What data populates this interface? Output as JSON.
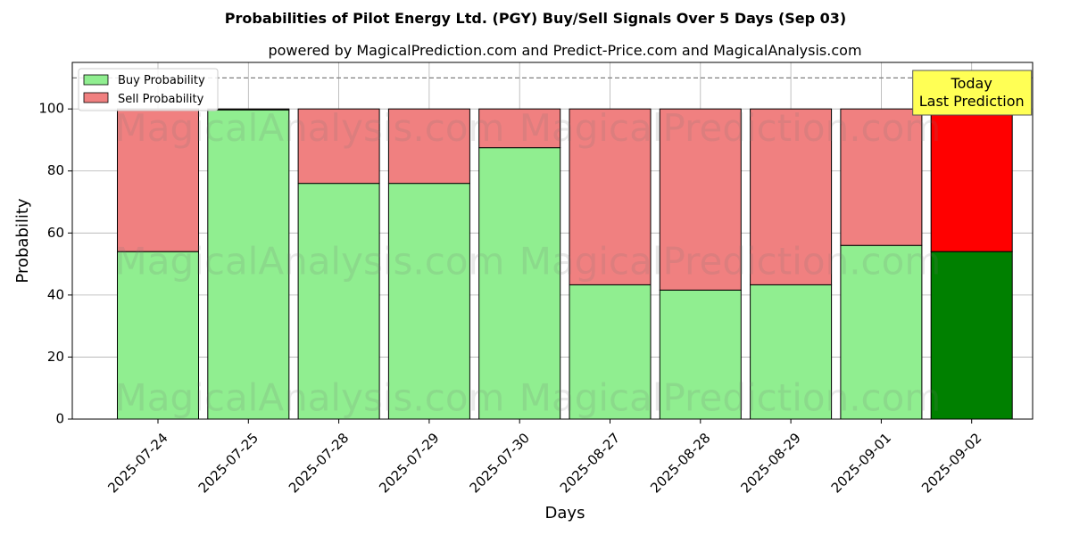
{
  "chart_data": {
    "type": "bar",
    "stacked": true,
    "title": "Probabilities of Pilot Energy Ltd. (PGY) Buy/Sell Signals Over 5 Days (Sep 03)",
    "subtitle": "powered by MagicalPrediction.com and Predict-Price.com and MagicalAnalysis.com",
    "xlabel": "Days",
    "ylabel": "Probability",
    "ylim": [
      0,
      115
    ],
    "yticks": [
      0,
      20,
      40,
      60,
      80,
      100
    ],
    "grid": true,
    "legend_position": "top-left",
    "categories": [
      "2025-07-24",
      "2025-07-25",
      "2025-07-28",
      "2025-07-29",
      "2025-07-30",
      "2025-08-27",
      "2025-08-28",
      "2025-08-29",
      "2025-09-01",
      "2025-09-02"
    ],
    "series": [
      {
        "name": "Buy Probability",
        "color": "#90ee90",
        "highlight_color": "#008000",
        "values": [
          54,
          99.7,
          76,
          76,
          87.5,
          43.3,
          41.6,
          43.3,
          56,
          54
        ]
      },
      {
        "name": "Sell Probability",
        "color": "#f08080",
        "highlight_color": "#ff0000",
        "values": [
          46,
          0.3,
          24,
          24,
          12.5,
          56.7,
          58.4,
          56.7,
          44,
          46
        ]
      }
    ],
    "reference_line": {
      "y": 110,
      "style": "dashed",
      "color": "#808080"
    },
    "highlight_index": 9,
    "annotation": {
      "lines": [
        "Today",
        "Last Prediction"
      ],
      "background": "#ffff55"
    },
    "watermarks": [
      "MagicalAnalysis.com",
      "MagicalPrediction.com"
    ]
  }
}
